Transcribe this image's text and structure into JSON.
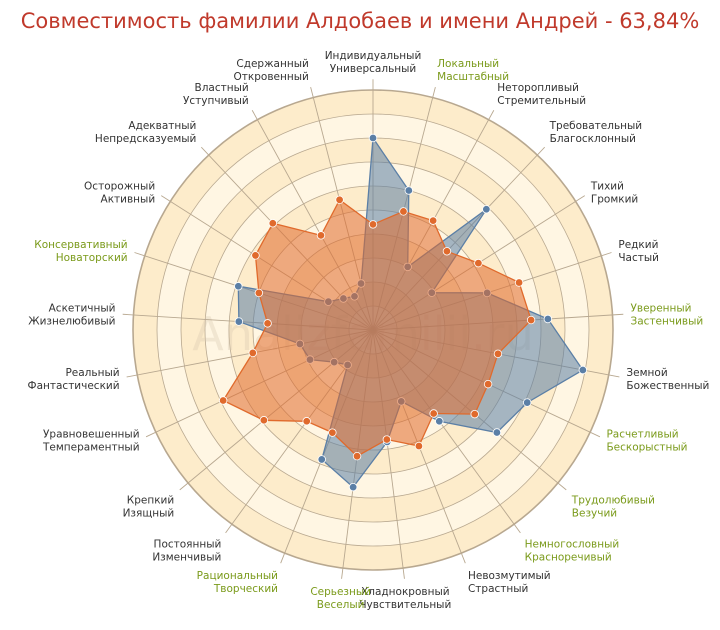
{
  "title": "Совместимость фамилии Алдобаев и имени Андрей - 63,84%",
  "watermark": "Analizfamilii.ru",
  "colors": {
    "title": "#c0392b",
    "label_normal": "#333333",
    "label_highlight": "#7a9a1a",
    "ring_outer": "#fdeccb",
    "ring_inner": "#fff6e3",
    "grid": "#b8a890",
    "series_surname": "#5b7fa6",
    "series_name": "#e06a2c"
  },
  "chart_data": {
    "type": "radar",
    "title": "Совместимость фамилии Алдобаев и имени Андрей - 63,84%",
    "rmax": 10,
    "rings": 10,
    "grid": true,
    "axes": [
      {
        "label": [
          "Индивидуальный",
          "Универсальный"
        ],
        "highlight": false
      },
      {
        "label": [
          "Локальный",
          "Масштабный"
        ],
        "highlight": true
      },
      {
        "label": [
          "Неторопливый",
          "Стремительный"
        ],
        "highlight": false
      },
      {
        "label": [
          "Требовательный",
          "Благосклонный"
        ],
        "highlight": false
      },
      {
        "label": [
          "Тихий",
          "Громкий"
        ],
        "highlight": false
      },
      {
        "label": [
          "Редкий",
          "Частый"
        ],
        "highlight": false
      },
      {
        "label": [
          "Уверенный",
          "Застенчивый"
        ],
        "highlight": true
      },
      {
        "label": [
          "Земной",
          "Божественный"
        ],
        "highlight": false
      },
      {
        "label": [
          "Расчетливый",
          "Бескорыстный"
        ],
        "highlight": true
      },
      {
        "label": [
          "Трудолюбивый",
          "Везучий"
        ],
        "highlight": true
      },
      {
        "label": [
          "Немногословный",
          "Красноречивый"
        ],
        "highlight": true
      },
      {
        "label": [
          "Невозмутимый",
          "Страстный"
        ],
        "highlight": false
      },
      {
        "label": [
          "Хладнокровный",
          "Чувствительный"
        ],
        "highlight": false
      },
      {
        "label": [
          "Серьезный",
          "Веселый"
        ],
        "highlight": true
      },
      {
        "label": [
          "Рациональный",
          "Творческий"
        ],
        "highlight": true
      },
      {
        "label": [
          "Постоянный",
          "Изменчивый"
        ],
        "highlight": false
      },
      {
        "label": [
          "Крепкий",
          "Изящный"
        ],
        "highlight": false
      },
      {
        "label": [
          "Уравновешенный",
          "Темпераментный"
        ],
        "highlight": false
      },
      {
        "label": [
          "Реальный",
          "Фантастический"
        ],
        "highlight": false
      },
      {
        "label": [
          "Аскетичный",
          "Жизнелюбивый"
        ],
        "highlight": false
      },
      {
        "label": [
          "Консервативный",
          "Новаторский"
        ],
        "highlight": true
      },
      {
        "label": [
          "Осторожный",
          "Активный"
        ],
        "highlight": false
      },
      {
        "label": [
          "Адекватный",
          "Непредсказуемый"
        ],
        "highlight": false
      },
      {
        "label": [
          "Властный",
          "Уступчивый"
        ],
        "highlight": false
      },
      {
        "label": [
          "Сдержанный",
          "Откровенный"
        ],
        "highlight": false
      }
    ],
    "series": [
      {
        "values": [
          8.0,
          6.0,
          3.0,
          6.9,
          2.9,
          5.0,
          7.3,
          8.9,
          7.1,
          6.7,
          4.7,
          3.2,
          4.7,
          6.6,
          5.8,
          1.8,
          2.1,
          2.9,
          3.1,
          5.6,
          5.9,
          2.2,
          1.8,
          1.6,
          2.0
        ]
      },
      {
        "values": [
          4.4,
          5.1,
          5.2,
          4.5,
          5.2,
          6.4,
          6.6,
          5.3,
          5.3,
          5.5,
          4.3,
          5.2,
          4.6,
          5.3,
          4.6,
          4.7,
          5.9,
          6.9,
          5.1,
          4.4,
          5.0,
          5.8,
          6.1,
          4.5,
          5.6
        ]
      }
    ]
  }
}
